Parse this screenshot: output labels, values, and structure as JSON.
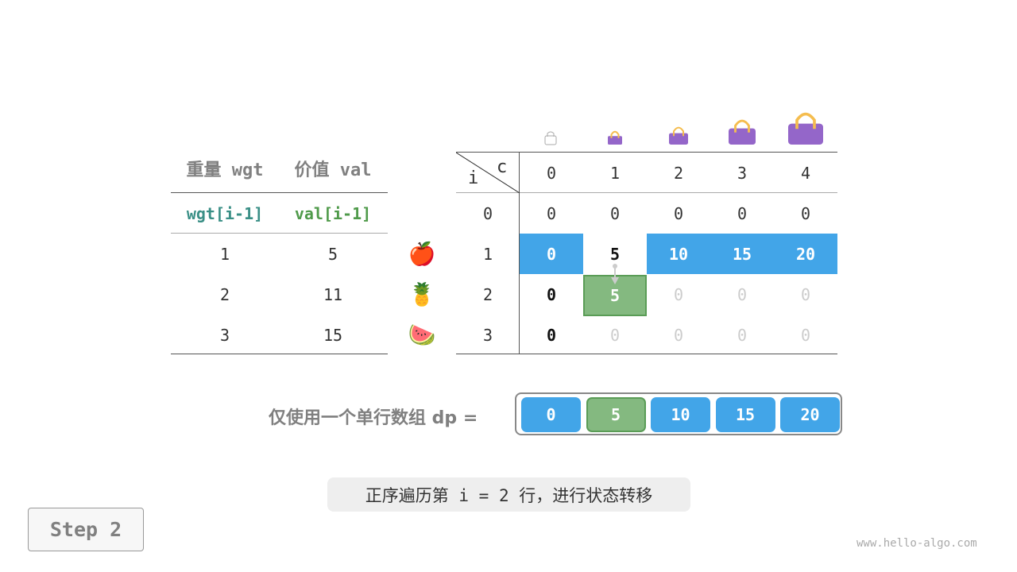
{
  "items_table": {
    "headers": [
      "重量 wgt",
      "价值 val"
    ],
    "subheaders": [
      "wgt[i-1]",
      "val[i-1]"
    ],
    "rows": [
      [
        "1",
        "5"
      ],
      [
        "2",
        "11"
      ],
      [
        "3",
        "15"
      ]
    ],
    "item_icons": [
      "apple-icon",
      "pineapple-icon",
      "watermelon-icon"
    ],
    "subheader_colors": [
      "#3a8f86",
      "#4f9a4a"
    ]
  },
  "dp_table": {
    "row_axis": "i",
    "col_axis": "c",
    "col_headers": [
      "0",
      "1",
      "2",
      "3",
      "4"
    ],
    "row_headers": [
      "0",
      "1",
      "2",
      "3"
    ],
    "cells": [
      [
        "0",
        "0",
        "0",
        "0",
        "0"
      ],
      [
        "0",
        "5",
        "10",
        "15",
        "20"
      ],
      [
        "0",
        "5",
        "0",
        "0",
        "0"
      ],
      [
        "0",
        "0",
        "0",
        "0",
        "0"
      ]
    ],
    "states": [
      [
        "normal",
        "normal",
        "normal",
        "normal",
        "normal"
      ],
      [
        "blue",
        "bold",
        "blue",
        "blue",
        "blue"
      ],
      [
        "bold",
        "green",
        "faded",
        "faded",
        "faded"
      ],
      [
        "bold",
        "faded",
        "faded",
        "faded",
        "faded"
      ]
    ],
    "bag_icons": [
      "empty-bag-icon",
      "bag-icon",
      "bag-icon",
      "bag-icon",
      "bag-icon"
    ]
  },
  "dp_array": {
    "label": "仅使用一个单行数组 dp =",
    "values": [
      "0",
      "5",
      "10",
      "15",
      "20"
    ],
    "states": [
      "blue",
      "green",
      "blue",
      "blue",
      "blue"
    ]
  },
  "caption": "正序遍历第 i = 2 行，进行状态转移",
  "step_label": "Step 2",
  "watermark": "www.hello-algo.com",
  "colors": {
    "blue": "#42a5e8",
    "green": "#84b980",
    "bag": "#9466c9",
    "handle": "#f5bd4f"
  }
}
